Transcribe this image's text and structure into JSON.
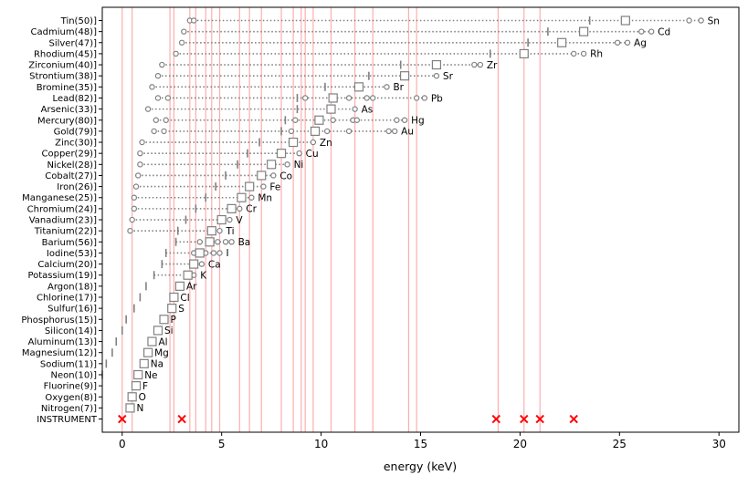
{
  "chart_data": {
    "type": "scatter",
    "xlabel": "energy (keV)",
    "ylabel": "",
    "title": "",
    "xlim": [
      -1,
      31
    ],
    "x_ticks": [
      0,
      5,
      10,
      15,
      20,
      25,
      30
    ],
    "grid": false,
    "vertical_lines_keV": [
      0.0,
      0.5,
      2.4,
      2.6,
      3.4,
      3.7,
      4.2,
      4.5,
      4.9,
      5.9,
      6.4,
      7.0,
      8.0,
      8.6,
      9.0,
      9.2,
      9.6,
      10.5,
      11.7,
      12.6,
      14.4,
      14.8,
      18.9,
      20.2,
      21.0
    ],
    "instrument": {
      "label": "INSTRUMENT",
      "x_marks": [
        0.0,
        3.0,
        18.8,
        20.2,
        21.0,
        22.7
      ]
    },
    "elements": [
      {
        "label": "Tin(50)]",
        "symbol": "Sn",
        "edge": 25.3,
        "tick": 23.5,
        "dots": [
          3.4,
          3.6,
          28.5,
          29.1
        ]
      },
      {
        "label": "Cadmium(48)]",
        "symbol": "Cd",
        "edge": 23.2,
        "tick": 21.4,
        "dots": [
          3.1,
          26.1,
          26.6
        ]
      },
      {
        "label": "Silver(47)]",
        "symbol": "Ag",
        "edge": 22.1,
        "tick": 20.4,
        "dots": [
          3.0,
          24.9,
          25.4
        ]
      },
      {
        "label": "Rhodium(45)]",
        "symbol": "Rh",
        "edge": 20.2,
        "tick": 18.5,
        "dots": [
          2.7,
          22.7,
          23.2
        ]
      },
      {
        "label": "Zirconium(40)]",
        "symbol": "Zr",
        "edge": 15.8,
        "tick": 14.0,
        "dots": [
          2.0,
          17.7,
          18.0
        ]
      },
      {
        "label": "Strontium(38)]",
        "symbol": "Sr",
        "edge": 14.2,
        "tick": 12.4,
        "dots": [
          1.8,
          15.8
        ]
      },
      {
        "label": "Bromine(35)]",
        "symbol": "Br",
        "edge": 11.9,
        "tick": 10.2,
        "dots": [
          1.5,
          13.3
        ]
      },
      {
        "label": "Lead(82)]",
        "symbol": "Pb",
        "edge": 10.6,
        "tick": 8.8,
        "dots": [
          1.8,
          2.3,
          9.2,
          11.4,
          12.3,
          12.6,
          14.8,
          15.2
        ]
      },
      {
        "label": "Arsenic(33)]",
        "symbol": "As",
        "edge": 10.5,
        "tick": 8.8,
        "dots": [
          1.3,
          11.7
        ]
      },
      {
        "label": "Mercury(80)]",
        "symbol": "Hg",
        "edge": 9.9,
        "tick": 8.2,
        "dots": [
          1.7,
          2.2,
          8.7,
          10.6,
          11.6,
          11.8,
          13.8,
          14.2
        ]
      },
      {
        "label": "Gold(79)]",
        "symbol": "Au",
        "edge": 9.7,
        "tick": 8.0,
        "dots": [
          1.6,
          2.1,
          8.5,
          10.3,
          11.4,
          13.4,
          13.7
        ]
      },
      {
        "label": "Zinc(30)]",
        "symbol": "Zn",
        "edge": 8.6,
        "tick": 6.9,
        "dots": [
          1.0,
          9.6
        ]
      },
      {
        "label": "Copper(29)]",
        "symbol": "Cu",
        "edge": 8.0,
        "tick": 6.3,
        "dots": [
          0.9,
          8.9
        ]
      },
      {
        "label": "Nickel(28)]",
        "symbol": "Ni",
        "edge": 7.5,
        "tick": 5.8,
        "dots": [
          0.9,
          8.3
        ]
      },
      {
        "label": "Cobalt(27)]",
        "symbol": "Co",
        "edge": 7.0,
        "tick": 5.2,
        "dots": [
          0.8,
          7.6
        ]
      },
      {
        "label": "Iron(26)]",
        "symbol": "Fe",
        "edge": 6.4,
        "tick": 4.7,
        "dots": [
          0.7,
          7.1
        ]
      },
      {
        "label": "Manganese(25)]",
        "symbol": "Mn",
        "edge": 6.0,
        "tick": 4.2,
        "dots": [
          0.6,
          6.5
        ]
      },
      {
        "label": "Chromium(24)]",
        "symbol": "Cr",
        "edge": 5.5,
        "tick": 3.7,
        "dots": [
          0.6,
          5.9
        ]
      },
      {
        "label": "Vanadium(23)]",
        "symbol": "V",
        "edge": 5.0,
        "tick": 3.2,
        "dots": [
          0.5,
          5.4
        ]
      },
      {
        "label": "Titanium(22)]",
        "symbol": "Ti",
        "edge": 4.5,
        "tick": 2.8,
        "dots": [
          0.4,
          4.9
        ]
      },
      {
        "label": "Barium(56)]",
        "symbol": "Ba",
        "edge": 4.4,
        "tick": 2.7,
        "dots": [
          3.9,
          4.5,
          4.8,
          5.2,
          5.5
        ]
      },
      {
        "label": "Iodine(53)]",
        "symbol": "I",
        "edge": 3.9,
        "tick": 2.2,
        "dots": [
          3.6,
          4.2,
          4.6,
          4.9
        ]
      },
      {
        "label": "Calcium(20)]",
        "symbol": "Ca",
        "edge": 3.6,
        "tick": 2.0,
        "dots": [
          4.0
        ]
      },
      {
        "label": "Potassium(19)]",
        "symbol": "K",
        "edge": 3.3,
        "tick": 1.6,
        "dots": [
          3.6
        ]
      },
      {
        "label": "Argon(18)]",
        "symbol": "Ar",
        "edge": 2.9,
        "tick": 1.2,
        "dots": []
      },
      {
        "label": "Chlorine(17)]",
        "symbol": "Cl",
        "edge": 2.6,
        "tick": 0.9,
        "dots": []
      },
      {
        "label": "Sulfur(16)]",
        "symbol": "S",
        "edge": 2.5,
        "tick": 0.6,
        "dots": []
      },
      {
        "label": "Phosphorus(15)]",
        "symbol": "P",
        "edge": 2.1,
        "tick": 0.2,
        "dots": []
      },
      {
        "label": "Silicon(14)]",
        "symbol": "Si",
        "edge": 1.8,
        "tick": 0.0,
        "dots": []
      },
      {
        "label": "Aluminum(13)]",
        "symbol": "Al",
        "edge": 1.5,
        "tick": -0.3,
        "dots": []
      },
      {
        "label": "Magnesium(12)]",
        "symbol": "Mg",
        "edge": 1.3,
        "tick": -0.5,
        "dots": []
      },
      {
        "label": "Sodium(11)]",
        "symbol": "Na",
        "edge": 1.1,
        "tick": -0.8,
        "dots": []
      },
      {
        "label": "Neon(10)]",
        "symbol": "Ne",
        "edge": 0.8,
        "tick": -1.0,
        "dots": []
      },
      {
        "label": "Fluorine(9)]",
        "symbol": "F",
        "edge": 0.7,
        "tick": null,
        "dots": []
      },
      {
        "label": "Oxygen(8)]",
        "symbol": "O",
        "edge": 0.5,
        "tick": null,
        "dots": []
      },
      {
        "label": "Nitrogen(7)]",
        "symbol": "N",
        "edge": 0.4,
        "tick": null,
        "dots": []
      }
    ],
    "colors": {
      "vertical_line": "#ff9999",
      "marker": "#808080",
      "instrument_mark": "#ff0000",
      "axis": "#000000"
    }
  }
}
